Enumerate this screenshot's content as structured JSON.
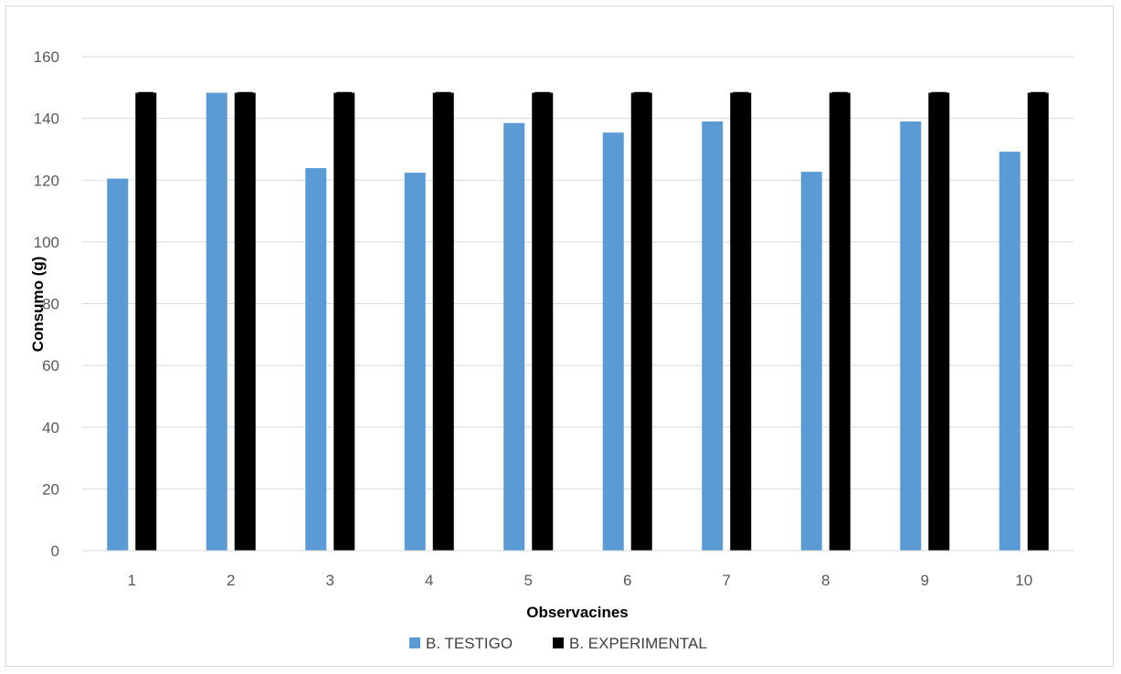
{
  "chart_data": {
    "type": "bar",
    "categories": [
      "1",
      "2",
      "3",
      "4",
      "5",
      "6",
      "7",
      "8",
      "9",
      "10"
    ],
    "series": [
      {
        "name": "B. TESTIGO",
        "color": "#5b9bd5",
        "values": [
          120.5,
          148.3,
          123.9,
          122.4,
          138.5,
          135.4,
          139.0,
          122.7,
          139.0,
          129.2
        ]
      },
      {
        "name": "B. EXPERIMENTAL",
        "color": "#000000",
        "values": [
          148.3,
          148.3,
          148.3,
          148.3,
          148.3,
          148.3,
          148.3,
          148.3,
          148.3,
          148.3
        ]
      }
    ],
    "xlabel": "Observacines",
    "ylabel": "Consumo  (g)",
    "ylim": [
      0,
      160
    ],
    "yticks": [
      0,
      20,
      40,
      60,
      80,
      100,
      120,
      140,
      160
    ],
    "grid": true,
    "legend": "bottom",
    "error_bars": "B. EXPERIMENTAL"
  }
}
